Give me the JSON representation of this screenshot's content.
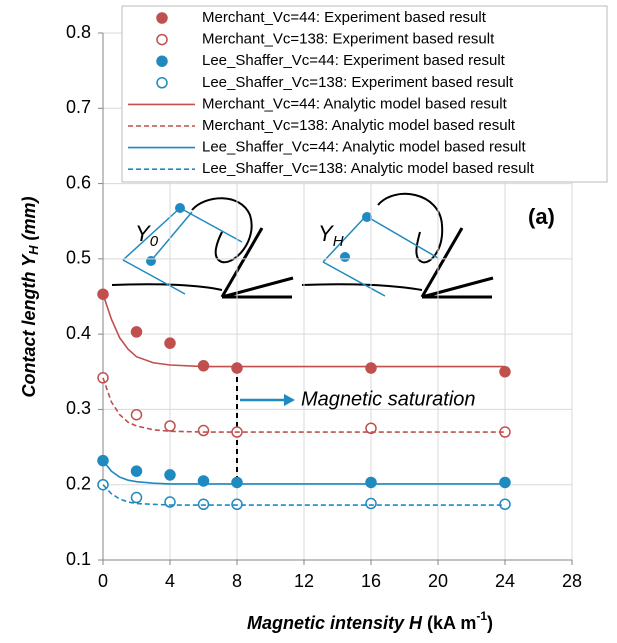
{
  "chart_data": {
    "type": "line",
    "y_label": [
      "Contact length Y",
      "H",
      " (mm)"
    ],
    "x_label": [
      "Magnetic intensity H",
      " (kA m",
      "-1",
      ")"
    ],
    "xlim": [
      0,
      28
    ],
    "xticks": [
      0,
      4,
      8,
      12,
      16,
      20,
      24,
      28
    ],
    "ylim": [
      0.1,
      0.8
    ],
    "yticks": [
      0.1,
      0.2,
      0.3,
      0.4,
      0.5,
      0.6,
      0.7,
      0.8
    ],
    "grid": true,
    "legend": "top",
    "annotations": {
      "saturation": "Magnetic saturation",
      "panel": "(a)",
      "inset_left": [
        "Y",
        "0"
      ],
      "inset_right": [
        "Y",
        "H"
      ]
    },
    "series": [
      {
        "name": "Merchant_Vc=44: Experiment based result",
        "style": "filled-marker",
        "color": "#c0504d",
        "x": [
          0,
          2,
          4,
          6,
          8,
          16,
          24
        ],
        "values": [
          0.453,
          0.403,
          0.388,
          0.358,
          0.355,
          0.355,
          0.35
        ]
      },
      {
        "name": "Merchant_Vc=138: Experiment based result",
        "style": "open-marker",
        "color": "#c0504d",
        "x": [
          0,
          2,
          4,
          6,
          8,
          16,
          24
        ],
        "values": [
          0.342,
          0.293,
          0.278,
          0.272,
          0.27,
          0.275,
          0.27
        ]
      },
      {
        "name": "Lee_Shaffer_Vc=44: Experiment based result",
        "style": "filled-marker",
        "color": "#1f8ac0",
        "x": [
          0,
          2,
          4,
          6,
          8,
          16,
          24
        ],
        "values": [
          0.232,
          0.218,
          0.213,
          0.205,
          0.203,
          0.203,
          0.203
        ]
      },
      {
        "name": "Lee_Shaffer_Vc=138: Experiment based result",
        "style": "open-marker",
        "color": "#1f8ac0",
        "x": [
          0,
          2,
          4,
          6,
          8,
          16,
          24
        ],
        "values": [
          0.2,
          0.183,
          0.177,
          0.174,
          0.174,
          0.175,
          0.174
        ]
      },
      {
        "name": "Merchant_Vc=44: Analytic model based result",
        "style": "solid-line",
        "color": "#c0504d",
        "x": [
          0,
          0.5,
          1,
          1.5,
          2,
          3,
          4,
          6,
          8,
          16,
          24
        ],
        "values": [
          0.453,
          0.42,
          0.395,
          0.38,
          0.37,
          0.362,
          0.359,
          0.357,
          0.357,
          0.357,
          0.357
        ]
      },
      {
        "name": "Merchant_Vc=138: Analytic model based result",
        "style": "dashed-line",
        "color": "#c0504d",
        "x": [
          0,
          0.5,
          1,
          1.5,
          2,
          3,
          4,
          6,
          8,
          16,
          24
        ],
        "values": [
          0.342,
          0.31,
          0.293,
          0.283,
          0.278,
          0.273,
          0.271,
          0.27,
          0.27,
          0.27,
          0.27
        ]
      },
      {
        "name": "Lee_Shaffer_Vc=44: Analytic model based result",
        "style": "solid-line",
        "color": "#1f8ac0",
        "x": [
          0,
          0.5,
          1,
          1.5,
          2,
          3,
          4,
          6,
          8,
          16,
          24
        ],
        "values": [
          0.232,
          0.218,
          0.21,
          0.206,
          0.204,
          0.202,
          0.201,
          0.201,
          0.201,
          0.201,
          0.201
        ]
      },
      {
        "name": "Lee_Shaffer_Vc=138: Analytic model based result",
        "style": "dashed-line",
        "color": "#1f8ac0",
        "x": [
          0,
          0.5,
          1,
          1.5,
          2,
          3,
          4,
          6,
          8,
          16,
          24
        ],
        "values": [
          0.2,
          0.188,
          0.181,
          0.177,
          0.175,
          0.174,
          0.173,
          0.173,
          0.173,
          0.173,
          0.173
        ]
      }
    ]
  }
}
